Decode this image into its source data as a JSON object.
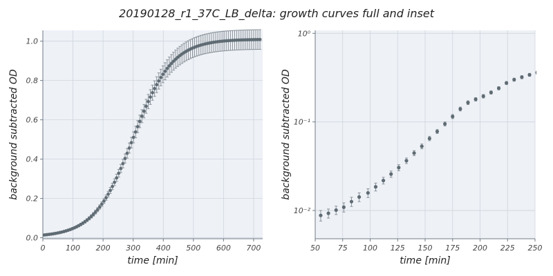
{
  "figure": {
    "title": "20190128_r1_37C_LB_delta: growth curves full and inset"
  },
  "colors": {
    "panel_bg": "#eef1f6",
    "grid": "#cfd5de",
    "marker": "#5f6b73",
    "errorbar": "#8a939a",
    "axis": "#6f7a86"
  },
  "chart_data": [
    {
      "type": "scatter",
      "xlabel": "time [min]",
      "ylabel": "background subtracted OD",
      "xlim": [
        0,
        730
      ],
      "ylim": [
        -0.005,
        1.055
      ],
      "xticks": [
        0,
        100,
        200,
        300,
        400,
        500,
        600,
        700
      ],
      "yticks": [
        0.0,
        0.2,
        0.4,
        0.6,
        0.8,
        1.0
      ],
      "ytick_labels": [
        "0.0",
        "0.2",
        "0.4",
        "0.6",
        "0.8",
        "1.0"
      ],
      "grid": true,
      "error_bars": true,
      "x_start": 0,
      "x_step": 7,
      "x_end": 721,
      "logistic_fit": {
        "K": 1.01,
        "r": 0.0155,
        "t_mid": 300,
        "baseline": 0.004
      }
    },
    {
      "type": "scatter",
      "yscale": "log",
      "xlabel": "time [min]",
      "ylabel": "background subtracted OD",
      "xlim": [
        50,
        250
      ],
      "ylim": [
        0.0048,
        1.08
      ],
      "xticks": [
        50,
        75,
        100,
        125,
        150,
        175,
        200,
        225,
        250
      ],
      "yticks": [
        0.01,
        0.1,
        1
      ],
      "ytick_labels": [
        "10⁻²",
        "10⁻¹",
        "10⁰"
      ],
      "grid": true,
      "error_bars": true,
      "points": [
        {
          "x": 55,
          "y": 0.0088,
          "err": 0.0012
        },
        {
          "x": 62,
          "y": 0.0093,
          "err": 0.0011
        },
        {
          "x": 69,
          "y": 0.0101,
          "err": 0.0011
        },
        {
          "x": 76,
          "y": 0.0109,
          "err": 0.0013
        },
        {
          "x": 83,
          "y": 0.0126,
          "err": 0.0015
        },
        {
          "x": 90,
          "y": 0.0142,
          "err": 0.0016
        },
        {
          "x": 98,
          "y": 0.0158,
          "err": 0.0018
        },
        {
          "x": 105,
          "y": 0.0185,
          "err": 0.0019
        },
        {
          "x": 112,
          "y": 0.0218,
          "err": 0.0019
        },
        {
          "x": 119,
          "y": 0.0258,
          "err": 0.0021
        },
        {
          "x": 126,
          "y": 0.0305,
          "err": 0.0024
        },
        {
          "x": 133,
          "y": 0.0365,
          "err": 0.0026
        },
        {
          "x": 140,
          "y": 0.0445,
          "err": 0.0029
        },
        {
          "x": 147,
          "y": 0.053,
          "err": 0.0033
        },
        {
          "x": 154,
          "y": 0.065,
          "err": 0.0036
        },
        {
          "x": 161,
          "y": 0.078,
          "err": 0.004
        },
        {
          "x": 168,
          "y": 0.095,
          "err": 0.005
        },
        {
          "x": 175,
          "y": 0.115,
          "err": 0.006
        },
        {
          "x": 182,
          "y": 0.14,
          "err": 0.007
        },
        {
          "x": 189,
          "y": 0.165,
          "err": 0.008
        },
        {
          "x": 196,
          "y": 0.18,
          "err": 0.008
        },
        {
          "x": 203,
          "y": 0.195,
          "err": 0.009
        },
        {
          "x": 210,
          "y": 0.215,
          "err": 0.009
        },
        {
          "x": 217,
          "y": 0.24,
          "err": 0.01
        },
        {
          "x": 224,
          "y": 0.275,
          "err": 0.011
        },
        {
          "x": 231,
          "y": 0.3,
          "err": 0.012
        },
        {
          "x": 238,
          "y": 0.32,
          "err": 0.013
        },
        {
          "x": 245,
          "y": 0.34,
          "err": 0.013
        },
        {
          "x": 252,
          "y": 0.36,
          "err": 0.014
        }
      ]
    }
  ]
}
